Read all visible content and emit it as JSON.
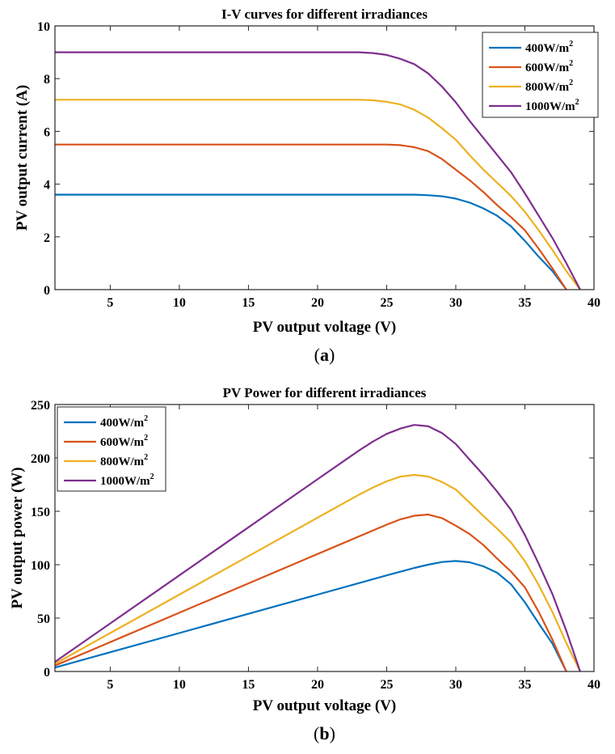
{
  "chart_data": [
    {
      "type": "line",
      "title": "I-V curves for different irradiances",
      "xlabel": "PV output voltage (V)",
      "ylabel": "PV output current (A)",
      "xlim": [
        1,
        40
      ],
      "ylim": [
        0,
        10
      ],
      "xticks": [
        5,
        10,
        15,
        20,
        25,
        30,
        35,
        40
      ],
      "yticks": [
        0,
        2,
        4,
        6,
        8,
        10
      ],
      "grid": false,
      "legend_position": "top-right",
      "caption": {
        "open": "(",
        "letter": "a",
        "close": ")"
      },
      "series": [
        {
          "name": "400W/m",
          "superscript": "2",
          "color": "#0072BD",
          "x": [
            1,
            5,
            10,
            15,
            20,
            25,
            27,
            28,
            29,
            30,
            31,
            32,
            33,
            34,
            35,
            36,
            37,
            38
          ],
          "y": [
            3.6,
            3.6,
            3.6,
            3.6,
            3.6,
            3.6,
            3.6,
            3.58,
            3.54,
            3.45,
            3.3,
            3.08,
            2.8,
            2.4,
            1.85,
            1.25,
            0.7,
            0
          ]
        },
        {
          "name": "600W/m",
          "superscript": "2",
          "color": "#D95319",
          "x": [
            1,
            5,
            10,
            15,
            20,
            25,
            26,
            27,
            28,
            29,
            30,
            31,
            32,
            33,
            34,
            35,
            36,
            37,
            38
          ],
          "y": [
            5.5,
            5.5,
            5.5,
            5.5,
            5.5,
            5.5,
            5.48,
            5.4,
            5.25,
            4.95,
            4.55,
            4.15,
            3.7,
            3.2,
            2.75,
            2.25,
            1.55,
            0.8,
            0
          ]
        },
        {
          "name": "800W/m",
          "superscript": "2",
          "color": "#EDB120",
          "x": [
            1,
            5,
            10,
            15,
            20,
            23,
            24,
            25,
            26,
            27,
            28,
            29,
            30,
            31,
            32,
            33,
            34,
            35,
            36,
            37,
            38,
            39
          ],
          "y": [
            7.2,
            7.2,
            7.2,
            7.2,
            7.2,
            7.2,
            7.18,
            7.12,
            7.02,
            6.82,
            6.52,
            6.12,
            5.68,
            5.1,
            4.55,
            4.05,
            3.55,
            2.95,
            2.25,
            1.5,
            0.7,
            0
          ]
        },
        {
          "name": "1000W/m",
          "superscript": "2",
          "color": "#7E2F8E",
          "x": [
            1,
            5,
            10,
            15,
            20,
            23,
            24,
            25,
            26,
            27,
            28,
            29,
            30,
            31,
            32,
            33,
            34,
            35,
            36,
            37,
            38,
            39
          ],
          "y": [
            9.0,
            9.0,
            9.0,
            9.0,
            9.0,
            9.0,
            8.97,
            8.9,
            8.75,
            8.55,
            8.2,
            7.7,
            7.1,
            6.4,
            5.75,
            5.1,
            4.45,
            3.65,
            2.8,
            1.95,
            1.0,
            0
          ]
        }
      ]
    },
    {
      "type": "line",
      "title": "PV Power for different irradiances",
      "xlabel": "PV output voltage (V)",
      "ylabel": "PV output power (W)",
      "xlim": [
        1,
        40
      ],
      "ylim": [
        0,
        250
      ],
      "xticks": [
        5,
        10,
        15,
        20,
        25,
        30,
        35,
        40
      ],
      "yticks": [
        0,
        50,
        100,
        150,
        200,
        250
      ],
      "grid": false,
      "legend_position": "top-left",
      "caption": {
        "open": "(",
        "letter": "b",
        "close": ")"
      },
      "series": [
        {
          "name": "400W/m",
          "superscript": "2",
          "color": "#0072BD",
          "x": [
            1,
            5,
            10,
            15,
            20,
            25,
            27,
            28,
            29,
            30,
            31,
            32,
            33,
            34,
            35,
            36,
            37,
            38
          ],
          "y": [
            3.6,
            18,
            36,
            54,
            72,
            90,
            97,
            100,
            102.5,
            103.5,
            102.3,
            98.5,
            92.4,
            81.6,
            64.8,
            45,
            25.9,
            0
          ]
        },
        {
          "name": "600W/m",
          "superscript": "2",
          "color": "#D95319",
          "x": [
            1,
            5,
            10,
            15,
            20,
            25,
            26,
            27,
            28,
            29,
            30,
            31,
            32,
            33,
            34,
            35,
            36,
            37,
            38
          ],
          "y": [
            5.5,
            27.5,
            55,
            82.5,
            110,
            137.5,
            142.5,
            145.8,
            147,
            143.6,
            136.5,
            128.7,
            118.4,
            105.6,
            93.5,
            78.8,
            55.8,
            29.6,
            0
          ]
        },
        {
          "name": "800W/m",
          "superscript": "2",
          "color": "#EDB120",
          "x": [
            1,
            5,
            10,
            15,
            20,
            23,
            24,
            25,
            26,
            27,
            28,
            29,
            30,
            31,
            32,
            33,
            34,
            35,
            36,
            37,
            38,
            39
          ],
          "y": [
            7.2,
            36,
            72,
            108,
            144,
            165.6,
            172.3,
            178,
            182.5,
            184.1,
            182.6,
            177.5,
            170.4,
            158.1,
            145.6,
            133.7,
            120.7,
            103.3,
            81,
            55.5,
            26.6,
            0
          ]
        },
        {
          "name": "1000W/m",
          "superscript": "2",
          "color": "#7E2F8E",
          "x": [
            1,
            5,
            10,
            15,
            20,
            23,
            24,
            25,
            26,
            27,
            28,
            29,
            30,
            31,
            32,
            33,
            34,
            35,
            36,
            37,
            38,
            39
          ],
          "y": [
            9,
            45,
            90,
            135,
            180,
            207,
            215.3,
            222.5,
            227.5,
            230.9,
            229.6,
            223.3,
            213,
            198.4,
            184,
            168.3,
            151.3,
            127.8,
            100.8,
            72.2,
            38,
            0
          ]
        }
      ]
    }
  ]
}
